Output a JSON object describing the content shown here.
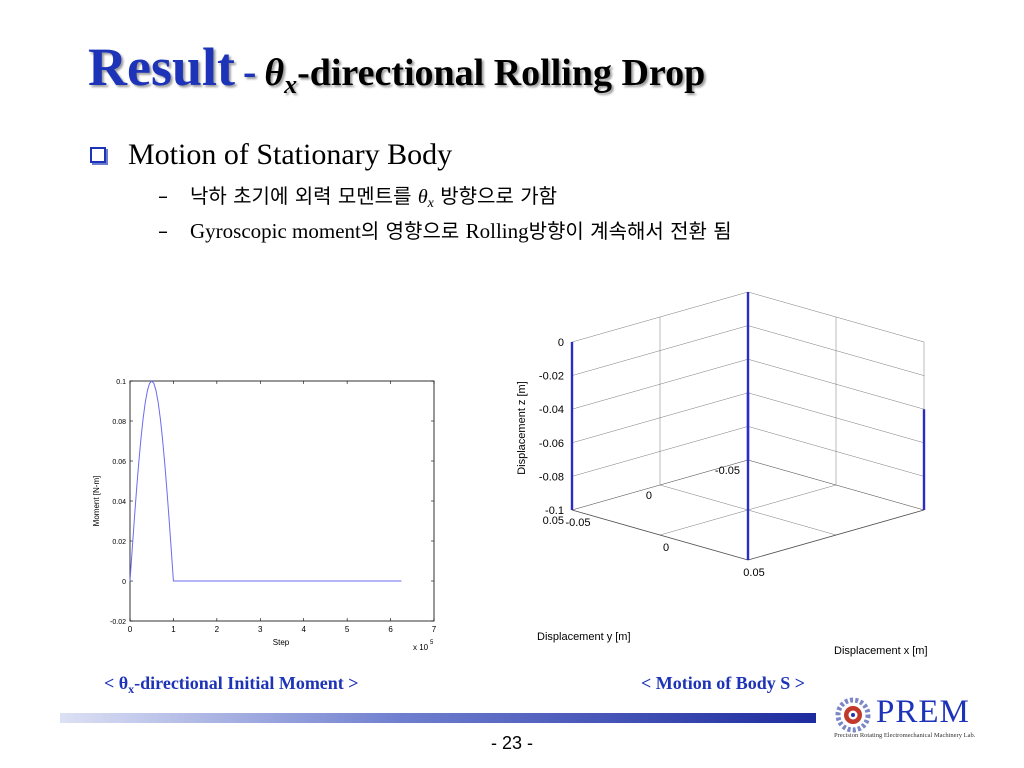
{
  "slide": {
    "title": {
      "result": "Result",
      "dash": "-",
      "theta": "θ",
      "sub": "x",
      "rest": "-directional Rolling Drop"
    },
    "bullet": "Motion of Stationary Body",
    "sub1": {
      "dash": "–",
      "text_a": "낙하 초기에 외력 모멘트를",
      "theta": "θ",
      "sub": "x",
      "text_b": "방향으로 가함"
    },
    "sub2": {
      "dash": "–",
      "en_a": "Gyroscopic moment",
      "ko_a": "의 영향으로",
      "en_b": "Rolling",
      "ko_b": "방향이 계속해서 전환 됨"
    },
    "caption_left": {
      "pre": "< θ",
      "sub": "x",
      "post": "-directional Initial Moment >"
    },
    "caption_right": "< Motion of Body S >",
    "logo": {
      "name": "PREM",
      "subtitle": "Precision Rotating Electromechanical Machinery Lab."
    },
    "page_number": "- 23 -",
    "colors": {
      "accent": "#1d33b8",
      "line": "#6b6bf0",
      "body": "#2b2bc8"
    }
  },
  "chart_data": [
    {
      "type": "line",
      "title": "",
      "xlabel": "Step",
      "ylabel": "Moment [N-m]",
      "x_multiplier_label": "x 10",
      "x_multiplier_exp": "5",
      "xlim": [
        0,
        7
      ],
      "ylim": [
        -0.02,
        0.1
      ],
      "x_ticks": [
        "0",
        "1",
        "2",
        "3",
        "4",
        "5",
        "6",
        "7"
      ],
      "y_ticks": [
        "-0.02",
        "0",
        "0.02",
        "0.04",
        "0.06",
        "0.08",
        "0.1"
      ],
      "series": [
        {
          "x": [
            0,
            0.05,
            0.1,
            0.15,
            0.2,
            0.25,
            0.3,
            0.35,
            0.4,
            0.45,
            0.5,
            0.55,
            0.6,
            0.65,
            0.7,
            0.75,
            0.8,
            0.85,
            0.9,
            0.95,
            1.0,
            1.02,
            6.25
          ],
          "values": [
            0,
            0.0156,
            0.0309,
            0.0454,
            0.0588,
            0.0707,
            0.0809,
            0.0891,
            0.0951,
            0.0988,
            0.1,
            0.0988,
            0.0951,
            0.0891,
            0.0809,
            0.0707,
            0.0588,
            0.0454,
            0.0309,
            0.0156,
            0,
            0,
            0
          ]
        }
      ]
    },
    {
      "type": "line",
      "title": "",
      "xlabel": "Displacement x [m]",
      "ylabel": "Displacement y [m]",
      "zlabel": "Displacement z [m]",
      "x_ticks": [
        "-0.05",
        "0",
        "0.05"
      ],
      "y_ticks": [
        "-0.05",
        "0",
        "0.05"
      ],
      "z_ticks": [
        "0",
        "-0.02",
        "-0.04",
        "-0.06",
        "-0.08",
        "-0.1"
      ],
      "xlim": [
        -0.05,
        0.05
      ],
      "ylim": [
        -0.05,
        0.05
      ],
      "zlim": [
        -0.1,
        0
      ],
      "series": [
        {
          "name": "",
          "x": [
            -0.05,
            -0.05
          ],
          "y": [
            0.05,
            0.05
          ],
          "z": [
            0.0,
            -0.1
          ]
        },
        {
          "name": "",
          "x": [
            0.05,
            0.05
          ],
          "y": [
            0.05,
            0.05
          ],
          "z": [
            0.0,
            -0.1
          ]
        },
        {
          "name": "",
          "x": [
            -0.05,
            -0.05
          ],
          "y": [
            -0.05,
            -0.05
          ],
          "z": [
            0.0,
            -0.1
          ]
        },
        {
          "name": "",
          "x": [
            0.05,
            0.05
          ],
          "y": [
            -0.05,
            -0.05
          ],
          "z": [
            -0.04,
            -0.1
          ]
        }
      ]
    }
  ]
}
